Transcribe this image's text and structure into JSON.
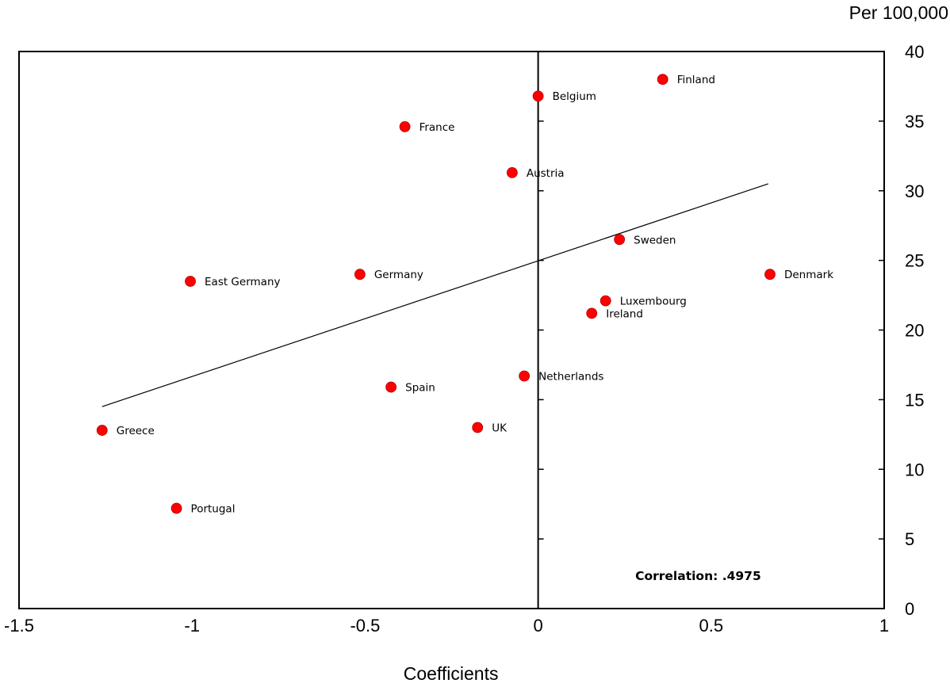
{
  "chart_data": {
    "type": "scatter",
    "title": "",
    "xlabel": "Coefficients",
    "ylabel": "Per 100,000",
    "xlim": [
      -1.5,
      1
    ],
    "ylim": [
      0,
      40
    ],
    "x_ticks": [
      -1.5,
      -1,
      -0.5,
      0,
      0.5,
      1
    ],
    "x_tick_labels": [
      "-1.5",
      "-1",
      "-0.5",
      "0",
      "0.5",
      "1"
    ],
    "y_ticks": [
      0,
      5,
      10,
      15,
      20,
      25,
      30,
      35,
      40
    ],
    "y_tick_labels": [
      "0",
      "5",
      "10",
      "15",
      "20",
      "25",
      "30",
      "35",
      "40"
    ],
    "grid": false,
    "y_axis_side": "right",
    "marker_color": "#ff0000",
    "line_color": "#000000",
    "points": [
      {
        "label": "Finland",
        "x": 0.36,
        "y": 38.0
      },
      {
        "label": "Belgium",
        "x": 0.0,
        "y": 36.8
      },
      {
        "label": "France",
        "x": -0.385,
        "y": 34.6
      },
      {
        "label": "Austria",
        "x": -0.075,
        "y": 31.3
      },
      {
        "label": "Sweden",
        "x": 0.235,
        "y": 26.5
      },
      {
        "label": "Denmark",
        "x": 0.67,
        "y": 24.0
      },
      {
        "label": "Germany",
        "x": -0.515,
        "y": 24.0
      },
      {
        "label": "East Germany",
        "x": -1.005,
        "y": 23.5
      },
      {
        "label": "Luxembourg",
        "x": 0.195,
        "y": 22.1
      },
      {
        "label": "Ireland",
        "x": 0.155,
        "y": 21.2
      },
      {
        "label": "Netherlands",
        "x": -0.04,
        "y": 16.7
      },
      {
        "label": "Spain",
        "x": -0.425,
        "y": 15.9
      },
      {
        "label": "UK",
        "x": -0.175,
        "y": 13.0
      },
      {
        "label": "Greece",
        "x": -1.26,
        "y": 12.8
      },
      {
        "label": "Portugal",
        "x": -1.045,
        "y": 7.2
      }
    ],
    "trendline": {
      "x": [
        -1.26,
        0.665
      ],
      "y": [
        14.5,
        30.5
      ]
    },
    "annotations": [
      {
        "text": "Correlation: .4975",
        "x": 0.6,
        "y": 2.4
      }
    ]
  }
}
